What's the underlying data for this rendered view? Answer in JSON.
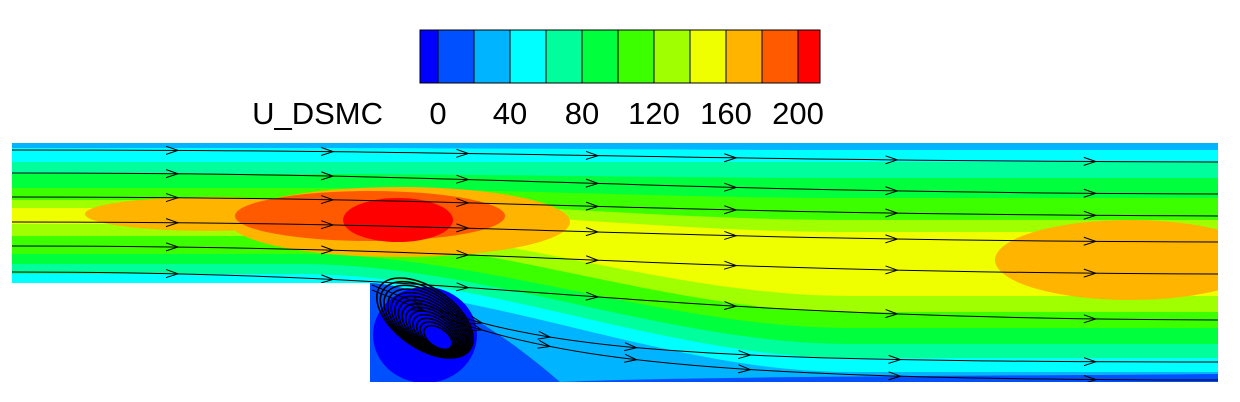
{
  "colorbar": {
    "label": "U_DSMC",
    "ticks": [
      0,
      40,
      80,
      120,
      160,
      200
    ],
    "colors": [
      "#0000ff",
      "#0050ff",
      "#00b4ff",
      "#00ffff",
      "#00ff9c",
      "#00ff3c",
      "#3cff00",
      "#a0ff00",
      "#f0ff00",
      "#ffb400",
      "#ff5a00",
      "#ff0000"
    ]
  }
}
